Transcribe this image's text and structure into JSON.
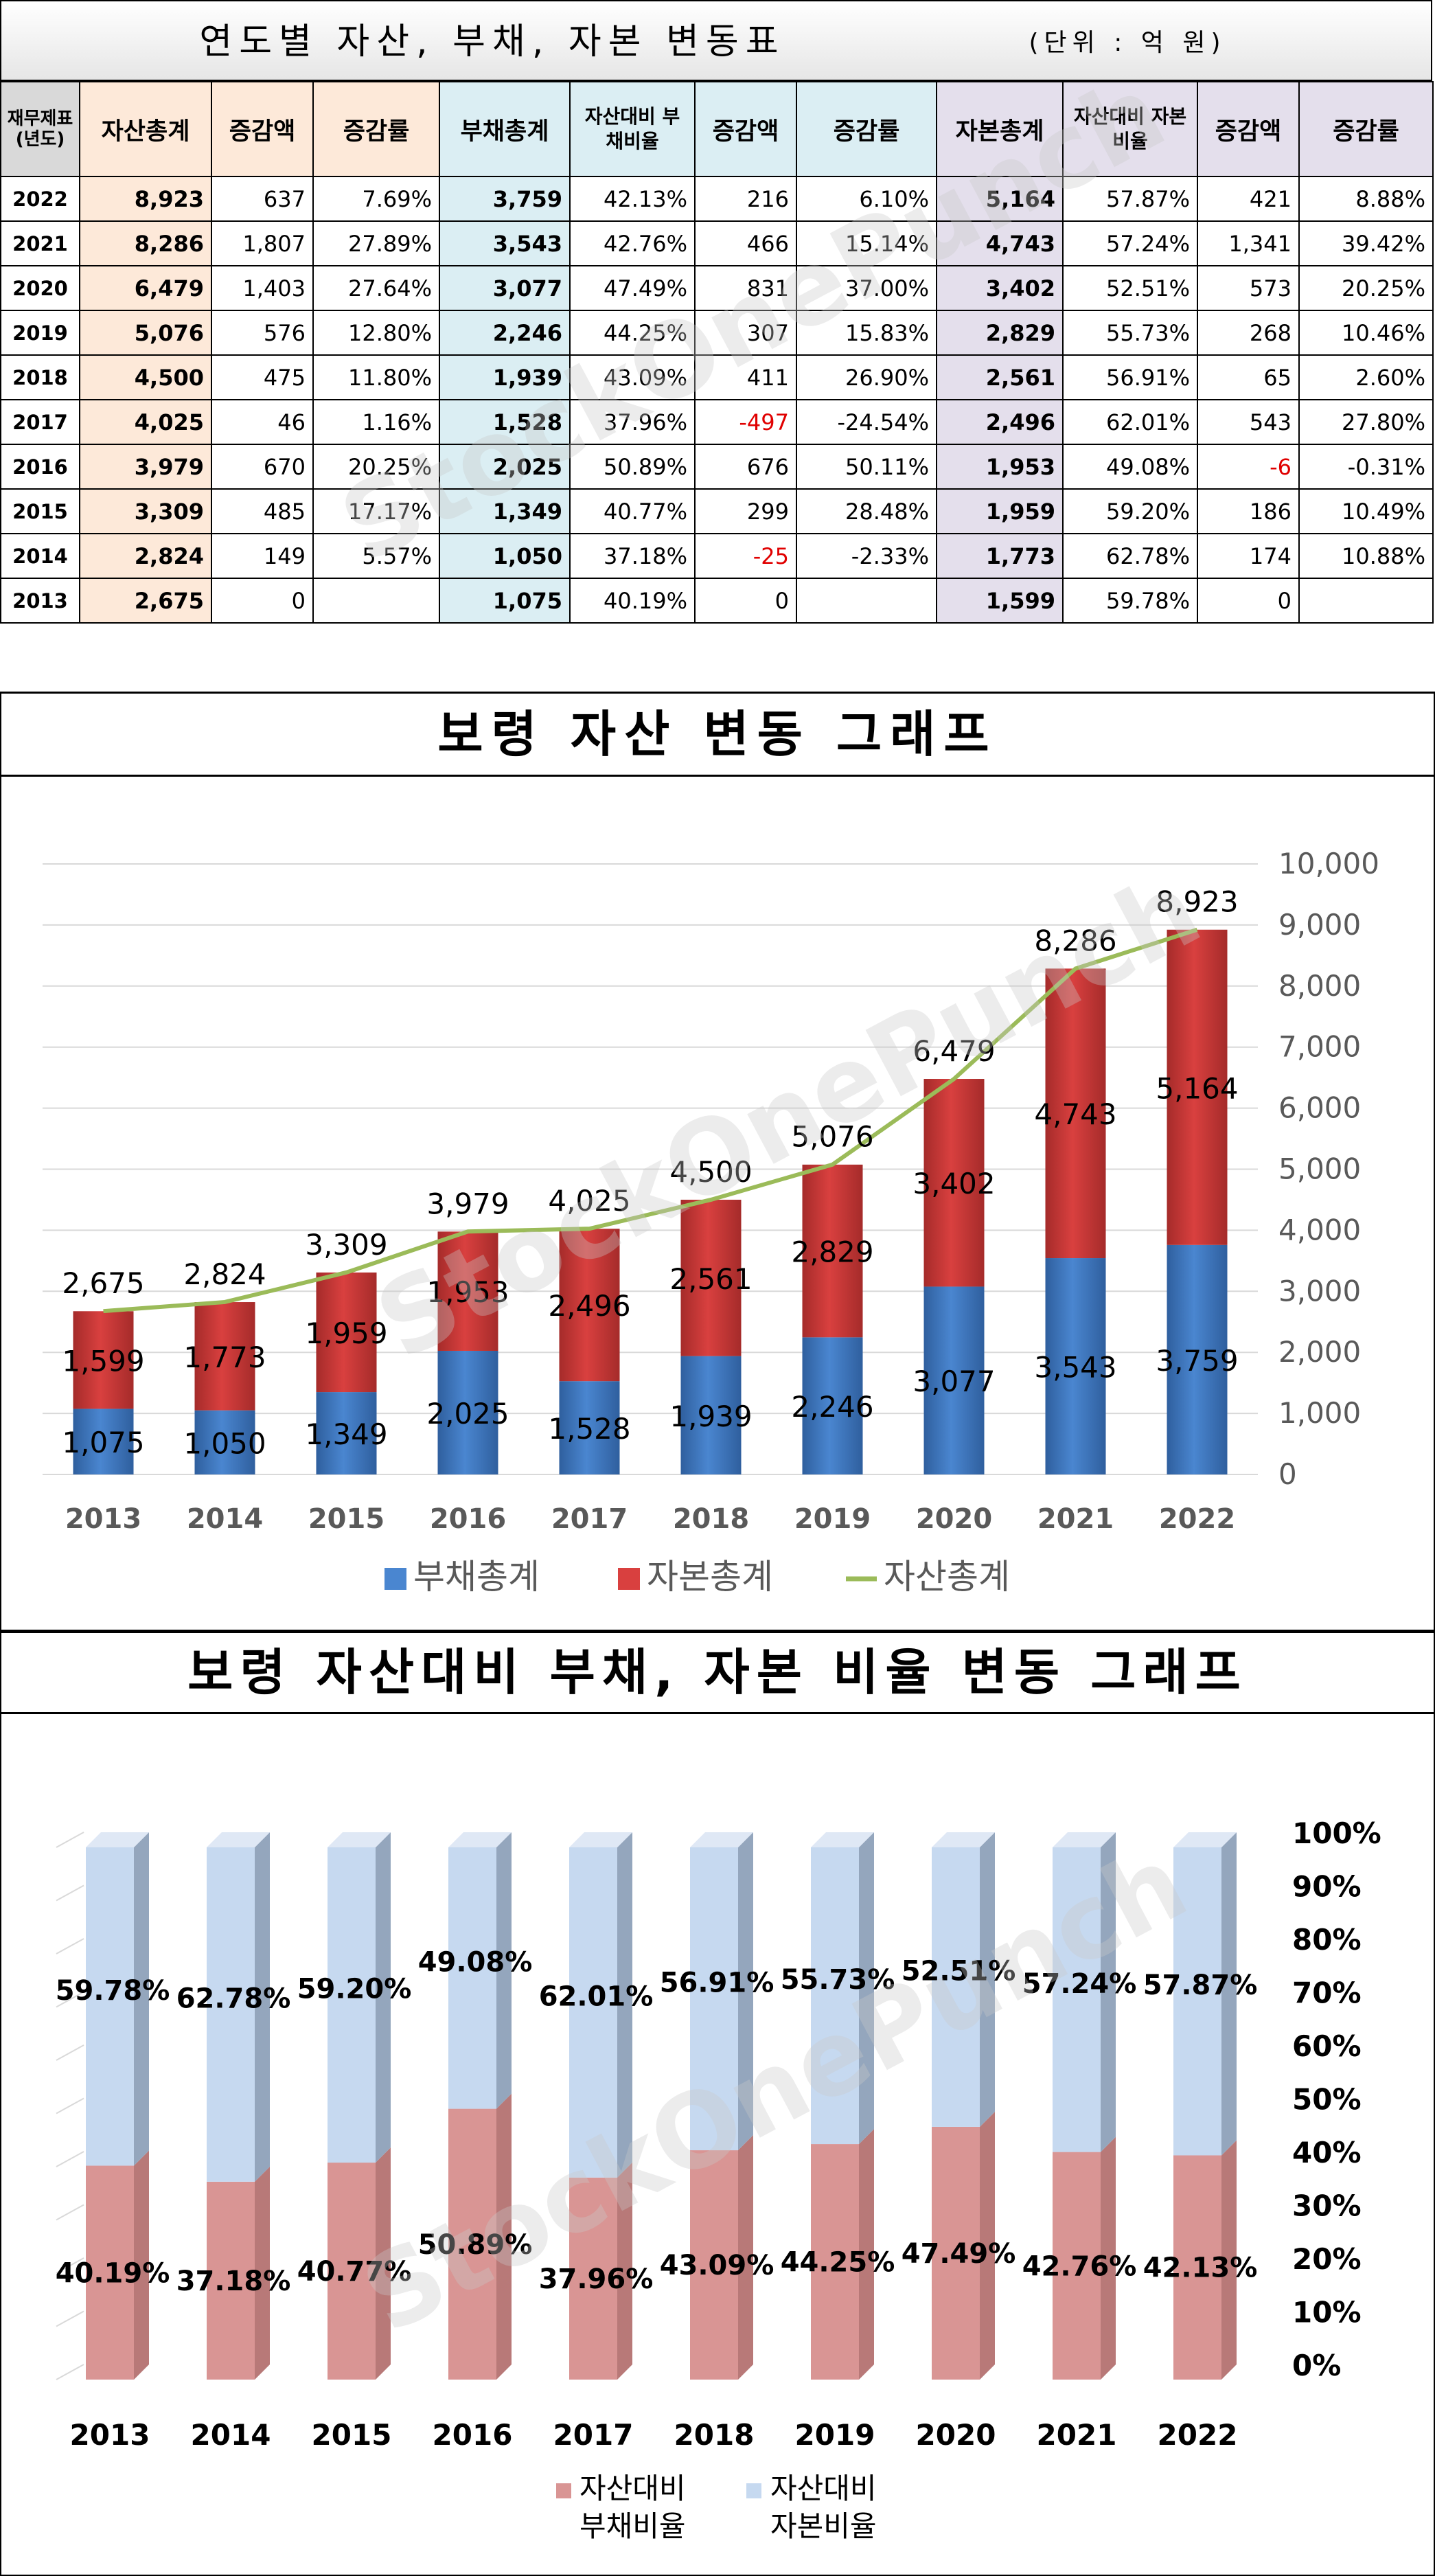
{
  "table": {
    "title": "연도별 자산, 부채, 자본 변동표",
    "unit": "(단위 : 억 원)",
    "headers": [
      "재무제표 (년도)",
      "자산총계",
      "증감액",
      "증감률",
      "부채총계",
      "자산대비 부채비율",
      "증감액",
      "증감률",
      "자본총계",
      "자산대비 자본비율",
      "증감액",
      "증감률"
    ],
    "rows": [
      [
        "2022",
        "8,923",
        "637",
        "7.69%",
        "3,759",
        "42.13%",
        "216",
        "6.10%",
        "5,164",
        "57.87%",
        "421",
        "8.88%"
      ],
      [
        "2021",
        "8,286",
        "1,807",
        "27.89%",
        "3,543",
        "42.76%",
        "466",
        "15.14%",
        "4,743",
        "57.24%",
        "1,341",
        "39.42%"
      ],
      [
        "2020",
        "6,479",
        "1,403",
        "27.64%",
        "3,077",
        "47.49%",
        "831",
        "37.00%",
        "3,402",
        "52.51%",
        "573",
        "20.25%"
      ],
      [
        "2019",
        "5,076",
        "576",
        "12.80%",
        "2,246",
        "44.25%",
        "307",
        "15.83%",
        "2,829",
        "55.73%",
        "268",
        "10.46%"
      ],
      [
        "2018",
        "4,500",
        "475",
        "11.80%",
        "1,939",
        "43.09%",
        "411",
        "26.90%",
        "2,561",
        "56.91%",
        "65",
        "2.60%"
      ],
      [
        "2017",
        "4,025",
        "46",
        "1.16%",
        "1,528",
        "37.96%",
        "-497",
        "-24.54%",
        "2,496",
        "62.01%",
        "543",
        "27.80%"
      ],
      [
        "2016",
        "3,979",
        "670",
        "20.25%",
        "2,025",
        "50.89%",
        "676",
        "50.11%",
        "1,953",
        "49.08%",
        "-6",
        "-0.31%"
      ],
      [
        "2015",
        "3,309",
        "485",
        "17.17%",
        "1,349",
        "40.77%",
        "299",
        "28.48%",
        "1,959",
        "59.20%",
        "186",
        "10.49%"
      ],
      [
        "2014",
        "2,824",
        "149",
        "5.57%",
        "1,050",
        "37.18%",
        "-25",
        "-2.33%",
        "1,773",
        "62.78%",
        "174",
        "10.88%"
      ],
      [
        "2013",
        "2,675",
        "0",
        "",
        "1,075",
        "40.19%",
        "0",
        "",
        "1,599",
        "59.78%",
        "0",
        ""
      ]
    ]
  },
  "watermark": "StockOnePunch",
  "colors": {
    "debt": "#4a86d0",
    "equity": "#d9403f",
    "asset_line": "#9bbb59",
    "ratio_debt": "#d99594",
    "ratio_equity": "#c6d9f0"
  },
  "chart_data": [
    {
      "type": "bar",
      "title": "보령 자산 변동 그래프",
      "categories": [
        "2013",
        "2014",
        "2015",
        "2016",
        "2017",
        "2018",
        "2019",
        "2020",
        "2021",
        "2022"
      ],
      "series": [
        {
          "name": "부채총계",
          "kind": "stacked-bar",
          "values": [
            1075,
            1050,
            1349,
            2025,
            1528,
            1939,
            2246,
            3077,
            3543,
            3759
          ]
        },
        {
          "name": "자본총계",
          "kind": "stacked-bar",
          "values": [
            1599,
            1773,
            1959,
            1953,
            2496,
            2561,
            2829,
            3402,
            4743,
            5164
          ]
        },
        {
          "name": "자산총계",
          "kind": "line",
          "values": [
            2675,
            2824,
            3309,
            3979,
            4025,
            4500,
            5076,
            6479,
            8286,
            8923
          ]
        }
      ],
      "ylim": [
        0,
        10000
      ],
      "yticks": [
        "0",
        "1,000",
        "2,000",
        "3,000",
        "4,000",
        "5,000",
        "6,000",
        "7,000",
        "8,000",
        "9,000",
        "10,000"
      ],
      "y_axis_side": "right",
      "grid": true,
      "legend": "bottom"
    },
    {
      "type": "bar",
      "title": "보령 자산대비 부채, 자본 비율 변동 그래프",
      "categories": [
        "2013",
        "2014",
        "2015",
        "2016",
        "2017",
        "2018",
        "2019",
        "2020",
        "2021",
        "2022"
      ],
      "series": [
        {
          "name": "자산대비 부채비율",
          "values": [
            40.19,
            37.18,
            40.77,
            50.89,
            37.96,
            43.09,
            44.25,
            47.49,
            42.76,
            42.13
          ],
          "labels": [
            "40.19%",
            "37.18%",
            "40.77%",
            "50.89%",
            "37.96%",
            "43.09%",
            "44.25%",
            "47.49%",
            "42.76%",
            "42.13%"
          ]
        },
        {
          "name": "자산대비 자본비율",
          "values": [
            59.78,
            62.78,
            59.2,
            49.08,
            62.01,
            56.91,
            55.73,
            52.51,
            57.24,
            57.87
          ],
          "labels": [
            "59.78%",
            "62.78%",
            "59.20%",
            "49.08%",
            "62.01%",
            "56.91%",
            "55.73%",
            "52.51%",
            "57.24%",
            "57.87%"
          ]
        }
      ],
      "ylim": [
        0,
        100
      ],
      "yticks": [
        "0%",
        "10%",
        "20%",
        "30%",
        "40%",
        "50%",
        "60%",
        "70%",
        "80%",
        "90%",
        "100%"
      ],
      "y_axis_side": "right",
      "stacked_percent": true,
      "style": "3d",
      "legend": "bottom"
    }
  ]
}
